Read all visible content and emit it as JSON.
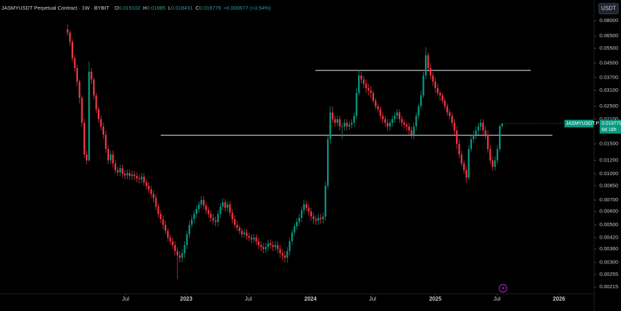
{
  "chart_data": {
    "type": "candlestick",
    "title": "JASMYUSDT Perpetual Contract · 1W · BYBIT",
    "header_stats": [
      {
        "label": "O",
        "value": 0.019102
      },
      {
        "label": "H",
        "value": 0.01985
      },
      {
        "label": "L",
        "value": 0.018431
      },
      {
        "label": "C",
        "value": 0.019779
      }
    ],
    "change": "+0.000677 (+3.54%)",
    "currency": "USDT",
    "price_label": {
      "name": "JASMYUSDT.P",
      "value": 0.019779,
      "countdown": "6d 18h"
    },
    "yscale": "log",
    "grid": false,
    "up_color": "#089981",
    "down_color": "#f23645",
    "xlim": [
      -28.3,
      220.2
    ],
    "ylim": [
      0.00198,
      0.0862
    ],
    "xticks": [
      {
        "value": 24.3,
        "label": "Jul"
      },
      {
        "value": 49.7,
        "label": "2023"
      },
      {
        "value": 75.7,
        "label": "Jul"
      },
      {
        "value": 101.7,
        "label": "2024"
      },
      {
        "value": 127.7,
        "label": "Jul"
      },
      {
        "value": 154,
        "label": "2025"
      },
      {
        "value": 179.8,
        "label": "Jul"
      },
      {
        "value": 205.8,
        "label": "2026"
      }
    ],
    "yticks": [
      {
        "value": 0.08,
        "label": "0.08000"
      },
      {
        "value": 0.065,
        "label": "0.06500"
      },
      {
        "value": 0.055,
        "label": "0.05500"
      },
      {
        "value": 0.045,
        "label": "0.04500"
      },
      {
        "value": 0.037,
        "label": "0.03700"
      },
      {
        "value": 0.031,
        "label": "0.03100"
      },
      {
        "value": 0.025,
        "label": "0.02500"
      },
      {
        "value": 0.021,
        "label": "0.02100"
      },
      {
        "value": 0.015,
        "label": "0.01500"
      },
      {
        "value": 0.012,
        "label": "0.01200"
      },
      {
        "value": 0.01,
        "label": "0.01000"
      },
      {
        "value": 0.0085,
        "label": "0.00850"
      },
      {
        "value": 0.007,
        "label": "0.00700"
      },
      {
        "value": 0.006,
        "label": "0.00600"
      },
      {
        "value": 0.005,
        "label": "0.00500"
      },
      {
        "value": 0.0042,
        "label": "0.00420"
      },
      {
        "value": 0.0036,
        "label": "0.00360"
      },
      {
        "value": 0.003,
        "label": "0.00300"
      },
      {
        "value": 0.00255,
        "label": "0.00255"
      },
      {
        "value": 0.00215,
        "label": "0.00215"
      }
    ],
    "hlines": [
      {
        "value": 0.0407,
        "x": [
          103.8,
          194
        ],
        "color": "#b2b5be"
      },
      {
        "value": 0.01687,
        "x": [
          39,
          203
        ],
        "color": "#b2b5be"
      }
    ],
    "values": [
      [
        0.071,
        0.076,
        0.065,
        0.068
      ],
      [
        0.068,
        0.07,
        0.057,
        0.06
      ],
      [
        0.06,
        0.062,
        0.046,
        0.048
      ],
      [
        0.048,
        0.05,
        0.04,
        0.042
      ],
      [
        0.042,
        0.044,
        0.033,
        0.035
      ],
      [
        0.035,
        0.036,
        0.026,
        0.028
      ],
      [
        0.028,
        0.029,
        0.019,
        0.02
      ],
      [
        0.02,
        0.021,
        0.0124,
        0.013
      ],
      [
        0.013,
        0.0137,
        0.0114,
        0.012
      ],
      [
        0.012,
        0.046,
        0.0118,
        0.04
      ],
      [
        0.04,
        0.042,
        0.034,
        0.036
      ],
      [
        0.036,
        0.037,
        0.0275,
        0.029
      ],
      [
        0.029,
        0.03,
        0.0228,
        0.024
      ],
      [
        0.024,
        0.025,
        0.02,
        0.021
      ],
      [
        0.021,
        0.022,
        0.018,
        0.019
      ],
      [
        0.019,
        0.02,
        0.016,
        0.017
      ],
      [
        0.017,
        0.018,
        0.0133,
        0.014
      ],
      [
        0.014,
        0.0147,
        0.0114,
        0.012
      ],
      [
        0.012,
        0.0137,
        0.0114,
        0.013
      ],
      [
        0.013,
        0.0137,
        0.0109,
        0.0115
      ],
      [
        0.0115,
        0.0121,
        0.01,
        0.0105
      ],
      [
        0.0105,
        0.011,
        0.0097,
        0.0102
      ],
      [
        0.0102,
        0.0113,
        0.0097,
        0.0108
      ],
      [
        0.0108,
        0.0113,
        0.0095,
        0.01
      ],
      [
        0.01,
        0.0105,
        0.0093,
        0.0098
      ],
      [
        0.0098,
        0.0106,
        0.0093,
        0.0101
      ],
      [
        0.0101,
        0.0106,
        0.0092,
        0.0097
      ],
      [
        0.0097,
        0.0104,
        0.0092,
        0.0099
      ],
      [
        0.0099,
        0.0104,
        0.0092,
        0.0097
      ],
      [
        0.0097,
        0.0102,
        0.0089,
        0.0094
      ],
      [
        0.0094,
        0.0099,
        0.0088,
        0.0093
      ],
      [
        0.0093,
        0.0101,
        0.0088,
        0.0096
      ],
      [
        0.0096,
        0.0101,
        0.0085,
        0.0089
      ],
      [
        0.0089,
        0.0093,
        0.0081,
        0.0085
      ],
      [
        0.0085,
        0.0089,
        0.0077,
        0.0081
      ],
      [
        0.0081,
        0.0085,
        0.0072,
        0.0076
      ],
      [
        0.0076,
        0.008,
        0.0068,
        0.0072
      ],
      [
        0.0072,
        0.0076,
        0.0061,
        0.0064
      ],
      [
        0.0064,
        0.0067,
        0.0055,
        0.0058
      ],
      [
        0.0058,
        0.0061,
        0.0051,
        0.0054
      ],
      [
        0.0054,
        0.0057,
        0.0047,
        0.005
      ],
      [
        0.005,
        0.0053,
        0.0044,
        0.0046
      ],
      [
        0.0046,
        0.0048,
        0.004,
        0.0042
      ],
      [
        0.0042,
        0.0044,
        0.0038,
        0.004
      ],
      [
        0.004,
        0.0042,
        0.0036,
        0.0038
      ],
      [
        0.0038,
        0.004,
        0.0033,
        0.0035
      ],
      [
        0.0035,
        0.0037,
        0.0024,
        0.0033
      ],
      [
        0.0033,
        0.0035,
        0.003,
        0.0032
      ],
      [
        0.0032,
        0.0036,
        0.003,
        0.0034
      ],
      [
        0.0034,
        0.004,
        0.0032,
        0.0038
      ],
      [
        0.0038,
        0.0046,
        0.0036,
        0.0044
      ],
      [
        0.0044,
        0.0053,
        0.0042,
        0.005
      ],
      [
        0.005,
        0.0057,
        0.0048,
        0.0054
      ],
      [
        0.0054,
        0.0061,
        0.0051,
        0.0058
      ],
      [
        0.0058,
        0.0065,
        0.0055,
        0.0062
      ],
      [
        0.0062,
        0.0069,
        0.0059,
        0.0066
      ],
      [
        0.0066,
        0.0074,
        0.0063,
        0.007
      ],
      [
        0.007,
        0.0074,
        0.0062,
        0.0065
      ],
      [
        0.0065,
        0.0068,
        0.0058,
        0.0061
      ],
      [
        0.0061,
        0.0064,
        0.0055,
        0.0058
      ],
      [
        0.0058,
        0.0061,
        0.0052,
        0.0055
      ],
      [
        0.0055,
        0.0058,
        0.005,
        0.0053
      ],
      [
        0.0053,
        0.0056,
        0.0049,
        0.0052
      ],
      [
        0.0052,
        0.0061,
        0.0049,
        0.0058
      ],
      [
        0.0058,
        0.0067,
        0.0055,
        0.0064
      ],
      [
        0.0064,
        0.0072,
        0.0061,
        0.0068
      ],
      [
        0.0068,
        0.0071,
        0.006,
        0.0063
      ],
      [
        0.0063,
        0.0069,
        0.006,
        0.0066
      ],
      [
        0.0066,
        0.0069,
        0.0056,
        0.0059
      ],
      [
        0.0059,
        0.0062,
        0.0051,
        0.0054
      ],
      [
        0.0054,
        0.0057,
        0.0048,
        0.005
      ],
      [
        0.005,
        0.0053,
        0.0046,
        0.0048
      ],
      [
        0.0048,
        0.005,
        0.0044,
        0.0046
      ],
      [
        0.0046,
        0.0048,
        0.0042,
        0.0044
      ],
      [
        0.0044,
        0.0047,
        0.0042,
        0.0045
      ],
      [
        0.0045,
        0.0047,
        0.0041,
        0.0043
      ],
      [
        0.0043,
        0.0045,
        0.004,
        0.0042
      ],
      [
        0.0042,
        0.0044,
        0.0039,
        0.0041
      ],
      [
        0.0041,
        0.0044,
        0.0039,
        0.0042
      ],
      [
        0.0042,
        0.0044,
        0.0038,
        0.004
      ],
      [
        0.004,
        0.0042,
        0.0036,
        0.0038
      ],
      [
        0.0038,
        0.004,
        0.0035,
        0.0037
      ],
      [
        0.0037,
        0.0039,
        0.0034,
        0.0036
      ],
      [
        0.0036,
        0.0039,
        0.0034,
        0.0037
      ],
      [
        0.0037,
        0.0041,
        0.0035,
        0.0039
      ],
      [
        0.0039,
        0.0041,
        0.0036,
        0.0038
      ],
      [
        0.0038,
        0.004,
        0.0035,
        0.0037
      ],
      [
        0.0037,
        0.004,
        0.0035,
        0.0038
      ],
      [
        0.0038,
        0.004,
        0.0034,
        0.0036
      ],
      [
        0.0036,
        0.0038,
        0.0032,
        0.0034
      ],
      [
        0.0034,
        0.0036,
        0.0031,
        0.0033
      ],
      [
        0.0033,
        0.0035,
        0.003,
        0.0032
      ],
      [
        0.0032,
        0.0037,
        0.003,
        0.0035
      ],
      [
        0.0035,
        0.0042,
        0.0033,
        0.004
      ],
      [
        0.004,
        0.0047,
        0.0038,
        0.0045
      ],
      [
        0.0045,
        0.0051,
        0.0043,
        0.0049
      ],
      [
        0.0049,
        0.0055,
        0.0047,
        0.0052
      ],
      [
        0.0052,
        0.0058,
        0.0049,
        0.0055
      ],
      [
        0.0055,
        0.0064,
        0.0052,
        0.0061
      ],
      [
        0.0061,
        0.007,
        0.0058,
        0.0066
      ],
      [
        0.0066,
        0.0069,
        0.006,
        0.0063
      ],
      [
        0.0063,
        0.0066,
        0.0057,
        0.006
      ],
      [
        0.006,
        0.0063,
        0.0053,
        0.0056
      ],
      [
        0.0056,
        0.0059,
        0.0051,
        0.0054
      ],
      [
        0.0054,
        0.0057,
        0.005,
        0.0053
      ],
      [
        0.0053,
        0.0058,
        0.005,
        0.0055
      ],
      [
        0.0055,
        0.0058,
        0.0051,
        0.0054
      ],
      [
        0.0054,
        0.0059,
        0.0051,
        0.0056
      ],
      [
        0.0056,
        0.009,
        0.0053,
        0.0085
      ],
      [
        0.0085,
        0.017,
        0.0081,
        0.016
      ],
      [
        0.016,
        0.025,
        0.015,
        0.023
      ],
      [
        0.023,
        0.025,
        0.02,
        0.021
      ],
      [
        0.021,
        0.022,
        0.019,
        0.02
      ],
      [
        0.02,
        0.022,
        0.019,
        0.021
      ],
      [
        0.021,
        0.022,
        0.018,
        0.019
      ],
      [
        0.019,
        0.02,
        0.016,
        0.019
      ],
      [
        0.019,
        0.021,
        0.018,
        0.02
      ],
      [
        0.02,
        0.021,
        0.018,
        0.019
      ],
      [
        0.019,
        0.0205,
        0.0182,
        0.0195
      ],
      [
        0.0195,
        0.021,
        0.0185,
        0.02
      ],
      [
        0.02,
        0.023,
        0.019,
        0.022
      ],
      [
        0.022,
        0.032,
        0.021,
        0.03
      ],
      [
        0.03,
        0.041,
        0.029,
        0.038
      ],
      [
        0.038,
        0.04,
        0.034,
        0.036
      ],
      [
        0.036,
        0.038,
        0.032,
        0.034
      ],
      [
        0.034,
        0.036,
        0.03,
        0.032
      ],
      [
        0.032,
        0.034,
        0.029,
        0.031
      ],
      [
        0.031,
        0.033,
        0.028,
        0.03
      ],
      [
        0.03,
        0.031,
        0.026,
        0.027
      ],
      [
        0.027,
        0.028,
        0.024,
        0.025
      ],
      [
        0.025,
        0.026,
        0.023,
        0.024
      ],
      [
        0.024,
        0.025,
        0.021,
        0.022
      ],
      [
        0.022,
        0.023,
        0.02,
        0.021
      ],
      [
        0.021,
        0.022,
        0.019,
        0.02
      ],
      [
        0.02,
        0.021,
        0.018,
        0.019
      ],
      [
        0.019,
        0.021,
        0.018,
        0.02
      ],
      [
        0.02,
        0.022,
        0.019,
        0.021
      ],
      [
        0.021,
        0.023,
        0.02,
        0.022
      ],
      [
        0.022,
        0.024,
        0.021,
        0.023
      ],
      [
        0.023,
        0.024,
        0.02,
        0.021
      ],
      [
        0.021,
        0.022,
        0.019,
        0.02
      ],
      [
        0.02,
        0.021,
        0.0185,
        0.0195
      ],
      [
        0.0195,
        0.02,
        0.018,
        0.019
      ],
      [
        0.019,
        0.02,
        0.017,
        0.018
      ],
      [
        0.018,
        0.019,
        0.0162,
        0.017
      ],
      [
        0.017,
        0.02,
        0.016,
        0.019
      ],
      [
        0.019,
        0.023,
        0.018,
        0.022
      ],
      [
        0.022,
        0.026,
        0.021,
        0.025
      ],
      [
        0.025,
        0.031,
        0.024,
        0.029
      ],
      [
        0.029,
        0.04,
        0.028,
        0.038
      ],
      [
        0.038,
        0.056,
        0.036,
        0.05
      ],
      [
        0.05,
        0.052,
        0.04,
        0.042
      ],
      [
        0.042,
        0.045,
        0.036,
        0.038
      ],
      [
        0.038,
        0.04,
        0.033,
        0.035
      ],
      [
        0.035,
        0.037,
        0.03,
        0.032
      ],
      [
        0.032,
        0.034,
        0.029,
        0.03
      ],
      [
        0.03,
        0.031,
        0.027,
        0.029
      ],
      [
        0.029,
        0.03,
        0.026,
        0.027
      ],
      [
        0.027,
        0.028,
        0.024,
        0.025
      ],
      [
        0.025,
        0.026,
        0.022,
        0.023
      ],
      [
        0.023,
        0.024,
        0.021,
        0.022
      ],
      [
        0.022,
        0.023,
        0.019,
        0.02
      ],
      [
        0.02,
        0.021,
        0.017,
        0.018
      ],
      [
        0.018,
        0.019,
        0.014,
        0.015
      ],
      [
        0.015,
        0.016,
        0.0124,
        0.013
      ],
      [
        0.013,
        0.0137,
        0.011,
        0.0115
      ],
      [
        0.0115,
        0.012,
        0.01,
        0.0105
      ],
      [
        0.0105,
        0.011,
        0.0088,
        0.0095
      ],
      [
        0.0095,
        0.0147,
        0.0092,
        0.014
      ],
      [
        0.014,
        0.0168,
        0.0135,
        0.016
      ],
      [
        0.016,
        0.018,
        0.0152,
        0.017
      ],
      [
        0.017,
        0.019,
        0.016,
        0.018
      ],
      [
        0.018,
        0.02,
        0.017,
        0.019
      ],
      [
        0.019,
        0.021,
        0.018,
        0.02
      ],
      [
        0.02,
        0.021,
        0.017,
        0.018
      ],
      [
        0.018,
        0.019,
        0.016,
        0.017
      ],
      [
        0.017,
        0.018,
        0.0133,
        0.014
      ],
      [
        0.014,
        0.0147,
        0.0114,
        0.012
      ],
      [
        0.012,
        0.0126,
        0.0104,
        0.011
      ],
      [
        0.011,
        0.0127,
        0.0105,
        0.012
      ],
      [
        0.012,
        0.0147,
        0.0115,
        0.014
      ],
      [
        0.014,
        0.0196,
        0.0135,
        0.0191
      ],
      [
        0.019102,
        0.01985,
        0.018431,
        0.019779
      ]
    ]
  }
}
